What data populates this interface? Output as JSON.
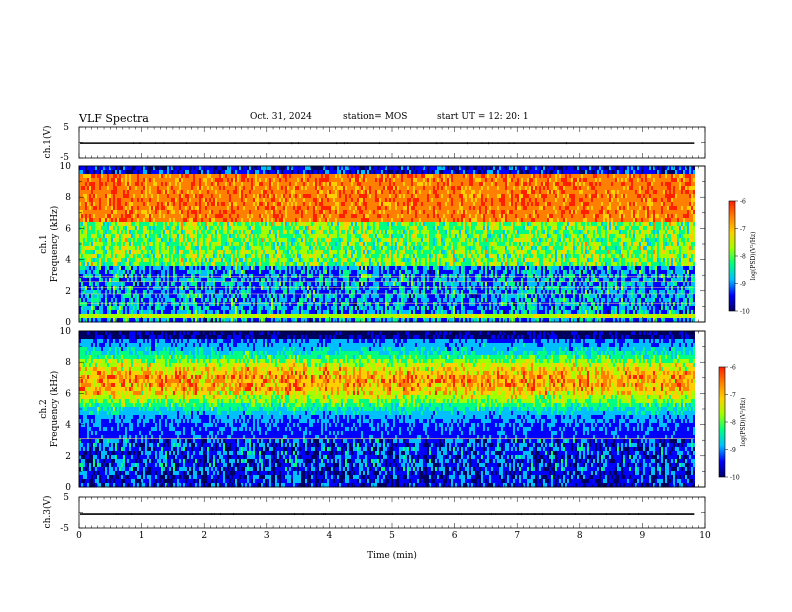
{
  "header": {
    "title": "VLF Spectra",
    "date": "Oct. 31, 2024",
    "station": "station= MOS",
    "start": "start  UT =   12: 20: 1"
  },
  "colors": {
    "colormap": [
      "#000060",
      "#0000ff",
      "#00bfff",
      "#00ff80",
      "#a0ff00",
      "#ffd000",
      "#ff8000",
      "#ff2000"
    ]
  },
  "chart_data": [
    {
      "type": "line",
      "ylabel": "ch.1(V)",
      "ylim": [
        -5,
        5
      ],
      "yticks": [
        "5",
        "-5"
      ],
      "xlim": [
        0,
        10
      ],
      "note": "near-flat trace at about -0.2 V for t = 0 to 9.83 min"
    },
    {
      "type": "heatmap",
      "ylabel": "ch.1\nFrequency (kHz)",
      "ylim": [
        0,
        10
      ],
      "yticks": [
        "0",
        "2",
        "4",
        "6",
        "8",
        "10"
      ],
      "xlim": [
        0,
        10
      ],
      "data_extent_min": [
        0,
        9.83
      ],
      "colorbar": {
        "label": "log(PSD)(V²/Hz)",
        "range": [
          -10,
          -6
        ],
        "ticks": [
          "-6",
          "-7",
          "-8",
          "-9",
          "-10"
        ]
      },
      "features": "intense emission (log PSD about -6.5) between 6.3 and 9.3 kHz, sharp cutoff near 9.4 kHz, horizontal interference lines near 0.4, 1.2, 1.8, 2.2, 2.6 and 2.9 kHz"
    },
    {
      "type": "heatmap",
      "ylabel": "ch.2\nFrequency (kHz)",
      "ylim": [
        0,
        10
      ],
      "yticks": [
        "0",
        "2",
        "4",
        "6",
        "8",
        "10"
      ],
      "xlim": [
        0,
        10
      ],
      "data_extent_min": [
        0,
        9.83
      ],
      "colorbar": {
        "label": "log(PSD)(V²/Hz)",
        "range": [
          -10,
          -6
        ],
        "ticks": [
          "-6",
          "-7",
          "-8",
          "-9",
          "-10"
        ]
      },
      "features": "band peaking near 6.8 kHz (log PSD about -7), weak below 4 kHz, thin line near 3.1 kHz"
    },
    {
      "type": "line",
      "ylabel": "ch.3(V)",
      "xlabel": "Time (min)",
      "ylim": [
        -5,
        5
      ],
      "yticks": [
        "5",
        "-5"
      ],
      "xlim": [
        0,
        10
      ],
      "xticks": [
        "0",
        "1",
        "2",
        "3",
        "4",
        "5",
        "6",
        "7",
        "8",
        "9",
        "10"
      ],
      "note": "near-flat trace at about -0.5 V for t = 0 to 9.83 min"
    }
  ]
}
